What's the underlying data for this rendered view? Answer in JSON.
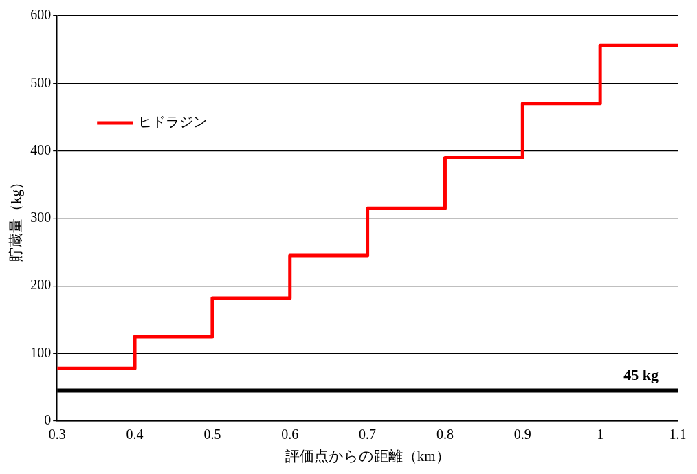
{
  "chart_data": {
    "type": "step",
    "xlabel": "評価点からの距離（km）",
    "ylabel": "貯蔵量（kg）",
    "x": [
      0.3,
      0.4,
      0.5,
      0.6,
      0.7,
      0.8,
      0.9,
      1.0,
      1.1
    ],
    "series": [
      {
        "name": "ヒドラジン",
        "color": "#ff0000",
        "values": [
          78,
          125,
          182,
          245,
          315,
          390,
          470,
          556,
          556
        ]
      }
    ],
    "xlim": [
      0.3,
      1.1
    ],
    "xticks": [
      0.3,
      0.4,
      0.5,
      0.6,
      0.7,
      0.8,
      0.9,
      1,
      1.1
    ],
    "ylim": [
      0,
      600
    ],
    "yticks": [
      0,
      100,
      200,
      300,
      400,
      500,
      600
    ],
    "grid": "y",
    "legend": "top left",
    "ref_lines": [
      {
        "axis": "y",
        "value": 45,
        "label": "45 kg",
        "color": "#000000"
      }
    ]
  }
}
